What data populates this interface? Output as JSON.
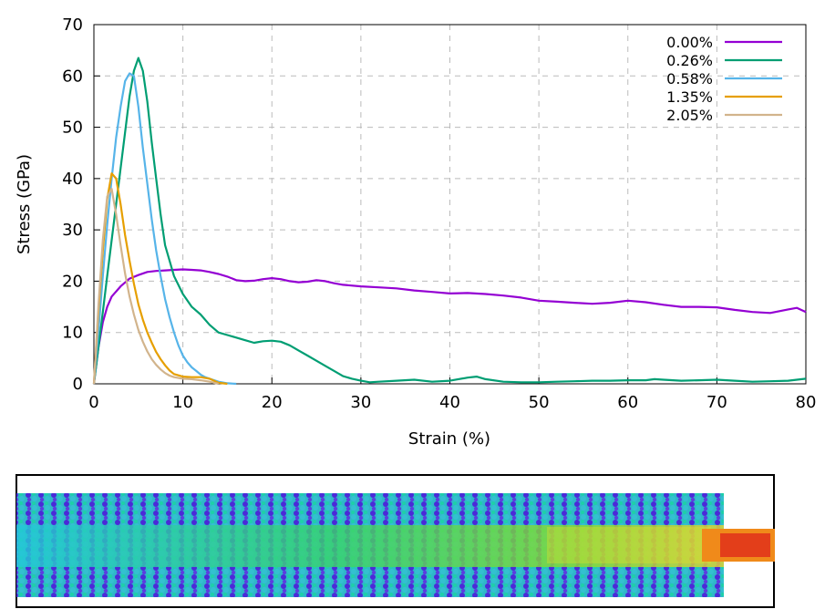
{
  "chart_data": {
    "type": "line",
    "xlabel": "Strain (%)",
    "ylabel": "Stress (GPa)",
    "xlim": [
      0,
      80
    ],
    "ylim": [
      0,
      70
    ],
    "xticks": [
      "0",
      "10",
      "20",
      "30",
      "40",
      "50",
      "60",
      "70",
      "80"
    ],
    "yticks": [
      "0",
      "10",
      "20",
      "30",
      "40",
      "50",
      "60",
      "70"
    ],
    "grid": "dashed",
    "legend_position": "top-right",
    "series": [
      {
        "name": "0.00%",
        "color": "#9400d3",
        "x": [
          0,
          0.5,
          1,
          1.5,
          2,
          3,
          4,
          5,
          6,
          7,
          8,
          9,
          10,
          11,
          12,
          13,
          14,
          15,
          16,
          17,
          18,
          19,
          20,
          21,
          22,
          23,
          24,
          25,
          26,
          27,
          28,
          30,
          32,
          34,
          36,
          38,
          40,
          42,
          44,
          46,
          48,
          50,
          52,
          54,
          56,
          58,
          60,
          62,
          64,
          66,
          68,
          70,
          72,
          74,
          76,
          78,
          79,
          80
        ],
        "y": [
          0,
          7,
          12,
          15,
          17,
          19,
          20.5,
          21.2,
          21.8,
          22,
          22.1,
          22.2,
          22.3,
          22.2,
          22.1,
          21.8,
          21.4,
          20.9,
          20.2,
          20.0,
          20.1,
          20.4,
          20.6,
          20.4,
          20.0,
          19.8,
          19.9,
          20.2,
          20.0,
          19.6,
          19.3,
          19.0,
          18.8,
          18.6,
          18.2,
          17.9,
          17.6,
          17.7,
          17.5,
          17.2,
          16.8,
          16.2,
          16.0,
          15.8,
          15.6,
          15.8,
          16.2,
          15.9,
          15.4,
          15.0,
          15.0,
          14.9,
          14.4,
          14.0,
          13.8,
          14.5,
          14.8,
          14.0
        ]
      },
      {
        "name": "0.26%",
        "color": "#009e73",
        "x": [
          0,
          0.5,
          1,
          1.5,
          2,
          2.5,
          3,
          3.5,
          4,
          4.5,
          5,
          5.5,
          6,
          6.5,
          7,
          7.5,
          8,
          9,
          10,
          11,
          12,
          13,
          14,
          15,
          16,
          17,
          18,
          19,
          20,
          21,
          22,
          23,
          24,
          25,
          26,
          27,
          28,
          29,
          30,
          31,
          32,
          34,
          36,
          38,
          40,
          42,
          43,
          44,
          46,
          48,
          50,
          52,
          54,
          56,
          58,
          60,
          62,
          63,
          64,
          66,
          68,
          70,
          72,
          74,
          76,
          78,
          80
        ],
        "y": [
          0,
          7,
          14,
          21,
          28,
          35,
          42,
          49,
          56,
          61,
          63.5,
          61,
          55,
          47,
          40,
          33,
          27,
          21,
          17.5,
          15,
          13.5,
          11.5,
          10,
          9.5,
          9,
          8.5,
          8.0,
          8.3,
          8.4,
          8.2,
          7.5,
          6.5,
          5.5,
          4.5,
          3.5,
          2.5,
          1.5,
          1.0,
          0.6,
          0.3,
          0.4,
          0.6,
          0.8,
          0.4,
          0.6,
          1.2,
          1.4,
          0.9,
          0.4,
          0.3,
          0.3,
          0.4,
          0.5,
          0.6,
          0.6,
          0.7,
          0.7,
          0.9,
          0.8,
          0.6,
          0.7,
          0.8,
          0.6,
          0.4,
          0.5,
          0.6,
          1.0
        ]
      },
      {
        "name": "0.58%",
        "color": "#56b4e9",
        "x": [
          0,
          0.5,
          1,
          1.5,
          2,
          2.5,
          3,
          3.5,
          4,
          4.5,
          5,
          5.5,
          6,
          6.5,
          7,
          7.5,
          8,
          8.5,
          9,
          9.5,
          10,
          10.5,
          11,
          11.5,
          12,
          12.5,
          13,
          13.5,
          14,
          15,
          16
        ],
        "y": [
          0,
          10,
          21,
          31,
          40,
          48,
          54,
          59,
          60.5,
          60,
          54,
          46,
          39,
          32,
          26,
          21,
          16.5,
          13,
          10,
          7.5,
          5.5,
          4.2,
          3.2,
          2.5,
          1.8,
          1.3,
          1.0,
          0.7,
          0.4,
          0.1,
          0
        ]
      },
      {
        "name": "1.35%",
        "color": "#e69f00",
        "x": [
          0,
          0.5,
          1,
          1.5,
          2,
          2.5,
          3,
          3.5,
          4,
          4.5,
          5,
          5.5,
          6,
          6.5,
          7,
          7.5,
          8,
          8.5,
          9,
          10,
          11,
          12,
          13,
          13.5,
          14,
          15
        ],
        "y": [
          0,
          14,
          26,
          36,
          41,
          40,
          35,
          29,
          24,
          19.5,
          15.5,
          12.5,
          10,
          8,
          6.2,
          4.8,
          3.6,
          2.6,
          1.9,
          1.4,
          1.3,
          1.3,
          1.0,
          0.6,
          0.2,
          0
        ]
      },
      {
        "name": "2.05%",
        "color": "#d2b48c",
        "x": [
          0,
          0.5,
          1,
          1.5,
          2,
          2.5,
          3,
          3.5,
          4,
          4.5,
          5,
          5.5,
          6,
          6.5,
          7,
          7.5,
          8,
          8.5,
          9,
          10,
          11,
          12,
          13,
          14
        ],
        "y": [
          0,
          15,
          28,
          36.5,
          38,
          33,
          27,
          21.5,
          17,
          13.5,
          10.5,
          8.2,
          6.3,
          4.8,
          3.7,
          2.8,
          2.1,
          1.6,
          1.3,
          1.0,
          0.9,
          0.7,
          0.4,
          0
        ]
      }
    ]
  }
}
